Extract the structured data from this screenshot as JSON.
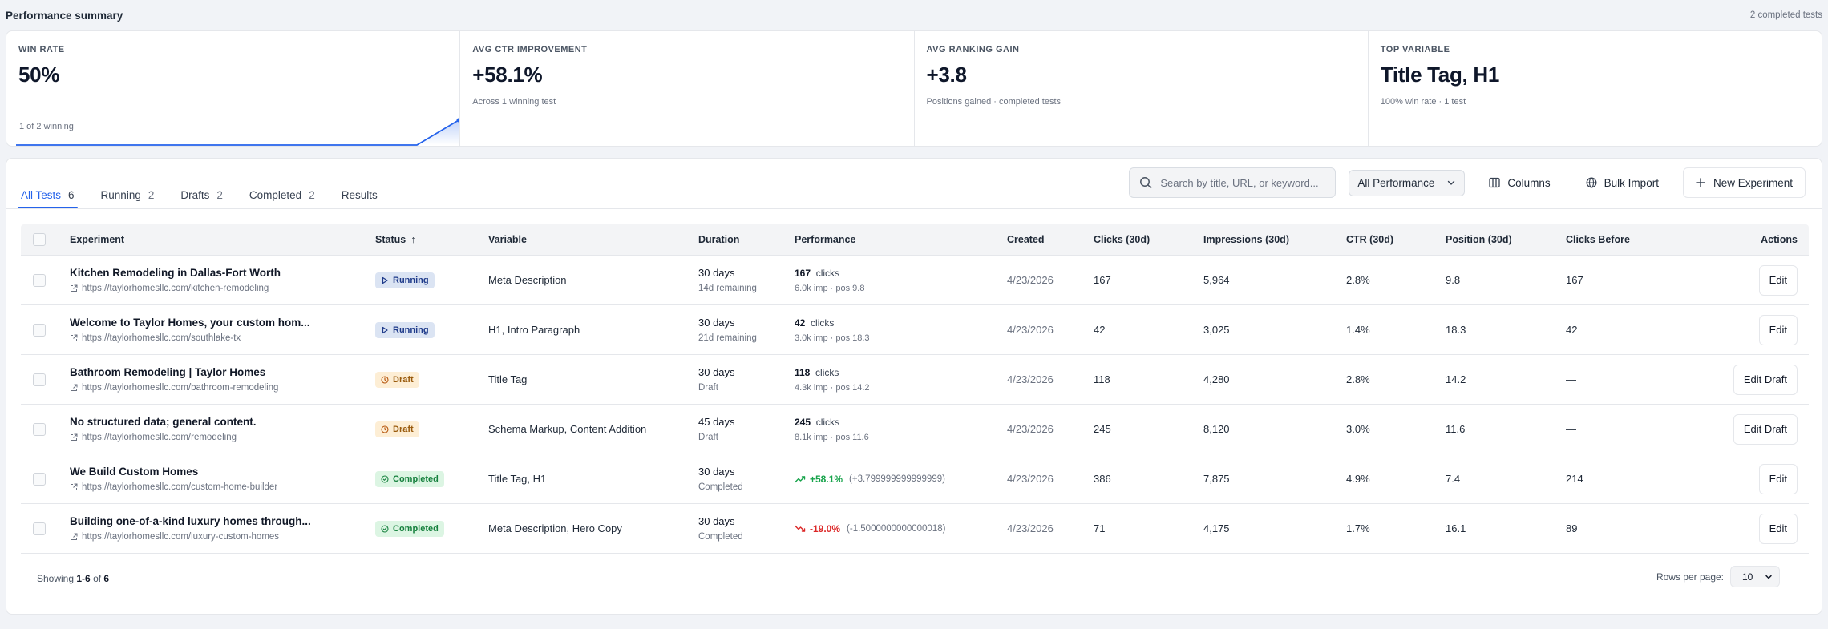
{
  "header": {
    "title": "Performance summary",
    "meta": "2 completed tests"
  },
  "kpis": [
    {
      "label": "WIN RATE",
      "value": "50%",
      "sub": "1 of 2 winning"
    },
    {
      "label": "AVG CTR IMPROVEMENT",
      "value": "+58.1%",
      "sub": "Across 1 winning test"
    },
    {
      "label": "AVG RANKING GAIN",
      "value": "+3.8",
      "sub": "Positions gained · completed tests"
    },
    {
      "label": "TOP VARIABLE",
      "value": "Title Tag, H1",
      "sub": "100% win rate · 1 test"
    }
  ],
  "tabs": [
    {
      "label": "All Tests",
      "count": "6",
      "active": true
    },
    {
      "label": "Running",
      "count": "2"
    },
    {
      "label": "Drafts",
      "count": "2"
    },
    {
      "label": "Completed",
      "count": "2"
    },
    {
      "label": "Results",
      "count": ""
    }
  ],
  "toolbar": {
    "search_placeholder": "Search by title, URL, or keyword...",
    "performance_filter": "All Performance",
    "columns_label": "Columns",
    "bulk_import_label": "Bulk Import",
    "new_experiment_label": "New Experiment"
  },
  "columns": [
    "Experiment",
    "Status",
    "Variable",
    "Duration",
    "Performance",
    "Created",
    "Clicks (30d)",
    "Impressions (30d)",
    "CTR (30d)",
    "Position (30d)",
    "Clicks Before",
    "Actions"
  ],
  "sort_indicator": "↑",
  "rows": [
    {
      "title": "Kitchen Remodeling in Dallas-Fort Worth",
      "url": "https://taylorhomesllc.com/kitchen-remodeling",
      "status": "Running",
      "variable": "Meta Description",
      "duration": "30 days",
      "duration_sub": "14d remaining",
      "perf_clicks": "167",
      "perf_clicks_label": "clicks",
      "perf_sub": "6.0k imp · pos 9.8",
      "created": "4/23/2026",
      "clicks": "167",
      "impressions": "5,964",
      "ctr": "2.8%",
      "position": "9.8",
      "clicks_before": "167",
      "action": "Edit"
    },
    {
      "title": "Welcome to Taylor Homes, your custom hom...",
      "url": "https://taylorhomesllc.com/southlake-tx",
      "status": "Running",
      "variable": "H1, Intro Paragraph",
      "duration": "30 days",
      "duration_sub": "21d remaining",
      "perf_clicks": "42",
      "perf_clicks_label": "clicks",
      "perf_sub": "3.0k imp · pos 18.3",
      "created": "4/23/2026",
      "clicks": "42",
      "impressions": "3,025",
      "ctr": "1.4%",
      "position": "18.3",
      "clicks_before": "42",
      "action": "Edit"
    },
    {
      "title": "Bathroom Remodeling | Taylor Homes",
      "url": "https://taylorhomesllc.com/bathroom-remodeling",
      "status": "Draft",
      "variable": "Title Tag",
      "duration": "30 days",
      "duration_sub": "Draft",
      "perf_clicks": "118",
      "perf_clicks_label": "clicks",
      "perf_sub": "4.3k imp · pos 14.2",
      "created": "4/23/2026",
      "clicks": "118",
      "impressions": "4,280",
      "ctr": "2.8%",
      "position": "14.2",
      "clicks_before": "—",
      "action": "Edit Draft"
    },
    {
      "title": "No structured data; general content.",
      "url": "https://taylorhomesllc.com/remodeling",
      "status": "Draft",
      "variable": "Schema Markup, Content Addition",
      "duration": "45 days",
      "duration_sub": "Draft",
      "perf_clicks": "245",
      "perf_clicks_label": "clicks",
      "perf_sub": "8.1k imp · pos 11.6",
      "created": "4/23/2026",
      "clicks": "245",
      "impressions": "8,120",
      "ctr": "3.0%",
      "position": "11.6",
      "clicks_before": "—",
      "action": "Edit Draft"
    },
    {
      "title": "We Build Custom Homes",
      "url": "https://taylorhomesllc.com/custom-home-builder",
      "status": "Completed",
      "variable": "Title Tag, H1",
      "duration": "30 days",
      "duration_sub": "Completed",
      "perf_delta": "+58.1%",
      "perf_delta_dir": "up",
      "perf_raw": "(+3.799999999999999)",
      "created": "4/23/2026",
      "clicks": "386",
      "impressions": "7,875",
      "ctr": "4.9%",
      "position": "7.4",
      "clicks_before": "214",
      "action": "Edit"
    },
    {
      "title": "Building one-of-a-kind luxury homes through...",
      "url": "https://taylorhomesllc.com/luxury-custom-homes",
      "status": "Completed",
      "variable": "Meta Description, Hero Copy",
      "duration": "30 days",
      "duration_sub": "Completed",
      "perf_delta": "-19.0%",
      "perf_delta_dir": "down",
      "perf_raw": "(-1.5000000000000018)",
      "created": "4/23/2026",
      "clicks": "71",
      "impressions": "4,175",
      "ctr": "1.7%",
      "position": "16.1",
      "clicks_before": "89",
      "action": "Edit"
    }
  ],
  "footer": {
    "showing_prefix": "Showing",
    "showing_range": "1-6",
    "showing_of": "of",
    "showing_total": "6",
    "rows_per_page_label": "Rows per page:",
    "rows_per_page_value": "10"
  },
  "colors": {
    "accent": "#2563eb",
    "success": "#16a34a",
    "danger": "#dc2626",
    "running_bg": "#dbe4f3",
    "draft_bg": "#fdeed5",
    "completed_bg": "#dcf5e3"
  }
}
